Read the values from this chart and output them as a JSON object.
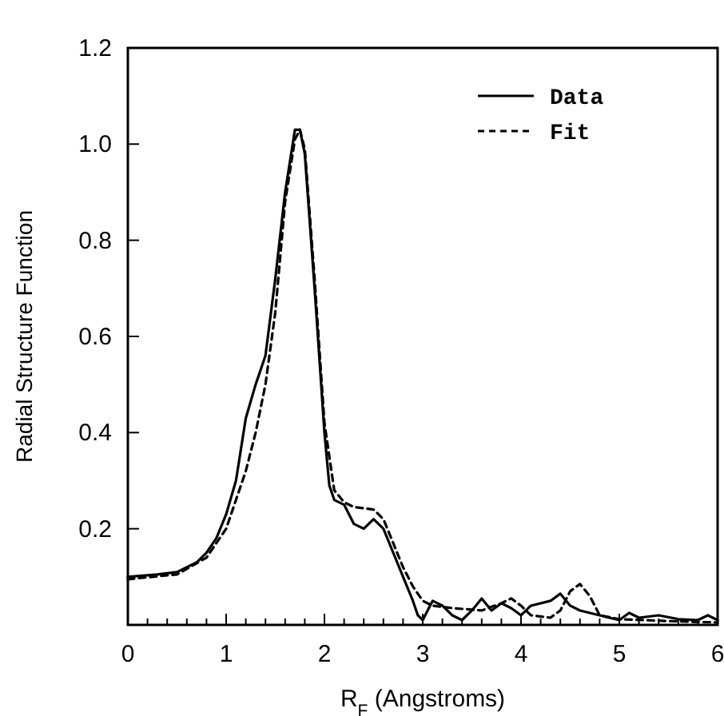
{
  "chart_data": {
    "type": "line",
    "xlabel": "R$_{F}$ (Angstroms)",
    "ylabel": "Radial Structure Function",
    "xlim": [
      0,
      6
    ],
    "ylim": [
      0,
      1.2
    ],
    "xticks": [
      0,
      1,
      2,
      3,
      4,
      5,
      6
    ],
    "yticks": [
      0.2,
      0.4,
      0.6,
      0.8,
      {
        "value": 1,
        "label": "1.0"
      },
      1.2
    ],
    "legend": "top right",
    "grid": false,
    "marker": "none",
    "series": [
      {
        "name": "Data",
        "color": "#000000",
        "line_style": "solid",
        "x": [
          0,
          0.3,
          0.5,
          0.7,
          0.8,
          0.9,
          1.0,
          1.1,
          1.2,
          1.3,
          1.4,
          1.5,
          1.6,
          1.7,
          1.75,
          1.8,
          1.9,
          2.0,
          2.05,
          2.1,
          2.2,
          2.3,
          2.4,
          2.5,
          2.6,
          2.7,
          2.8,
          2.9,
          2.95,
          3.0,
          3.1,
          3.2,
          3.3,
          3.4,
          3.5,
          3.6,
          3.7,
          3.8,
          3.9,
          4.0,
          4.1,
          4.3,
          4.4,
          4.5,
          4.6,
          4.8,
          5.0,
          5.1,
          5.2,
          5.4,
          5.6,
          5.8,
          5.9,
          6.0
        ],
        "values": [
          0.1,
          0.105,
          0.11,
          0.13,
          0.15,
          0.18,
          0.23,
          0.3,
          0.43,
          0.5,
          0.56,
          0.72,
          0.9,
          1.03,
          1.03,
          0.98,
          0.7,
          0.4,
          0.29,
          0.26,
          0.25,
          0.21,
          0.2,
          0.22,
          0.2,
          0.15,
          0.1,
          0.05,
          0.02,
          0.01,
          0.05,
          0.04,
          0.02,
          0.01,
          0.03,
          0.055,
          0.03,
          0.045,
          0.035,
          0.02,
          0.04,
          0.05,
          0.065,
          0.04,
          0.03,
          0.02,
          0.01,
          0.025,
          0.015,
          0.02,
          0.012,
          0.01,
          0.02,
          0.01
        ]
      },
      {
        "name": "Fit",
        "color": "#000000",
        "line_style": "dashed",
        "x": [
          0,
          0.5,
          0.8,
          1.0,
          1.2,
          1.3,
          1.4,
          1.5,
          1.6,
          1.7,
          1.75,
          1.8,
          1.9,
          2.0,
          2.1,
          2.2,
          2.3,
          2.5,
          2.6,
          2.7,
          2.8,
          2.9,
          3.0,
          3.1,
          3.3,
          3.6,
          3.8,
          3.9,
          4.0,
          4.1,
          4.3,
          4.4,
          4.5,
          4.6,
          4.7,
          4.8,
          5.0,
          5.5,
          6.0
        ],
        "values": [
          0.095,
          0.105,
          0.14,
          0.2,
          0.32,
          0.4,
          0.5,
          0.65,
          0.88,
          1.01,
          1.03,
          0.99,
          0.72,
          0.42,
          0.28,
          0.255,
          0.245,
          0.24,
          0.22,
          0.17,
          0.12,
          0.08,
          0.05,
          0.04,
          0.035,
          0.03,
          0.045,
          0.055,
          0.04,
          0.02,
          0.015,
          0.03,
          0.07,
          0.085,
          0.06,
          0.02,
          0.012,
          0.008,
          0.005
        ]
      }
    ]
  }
}
